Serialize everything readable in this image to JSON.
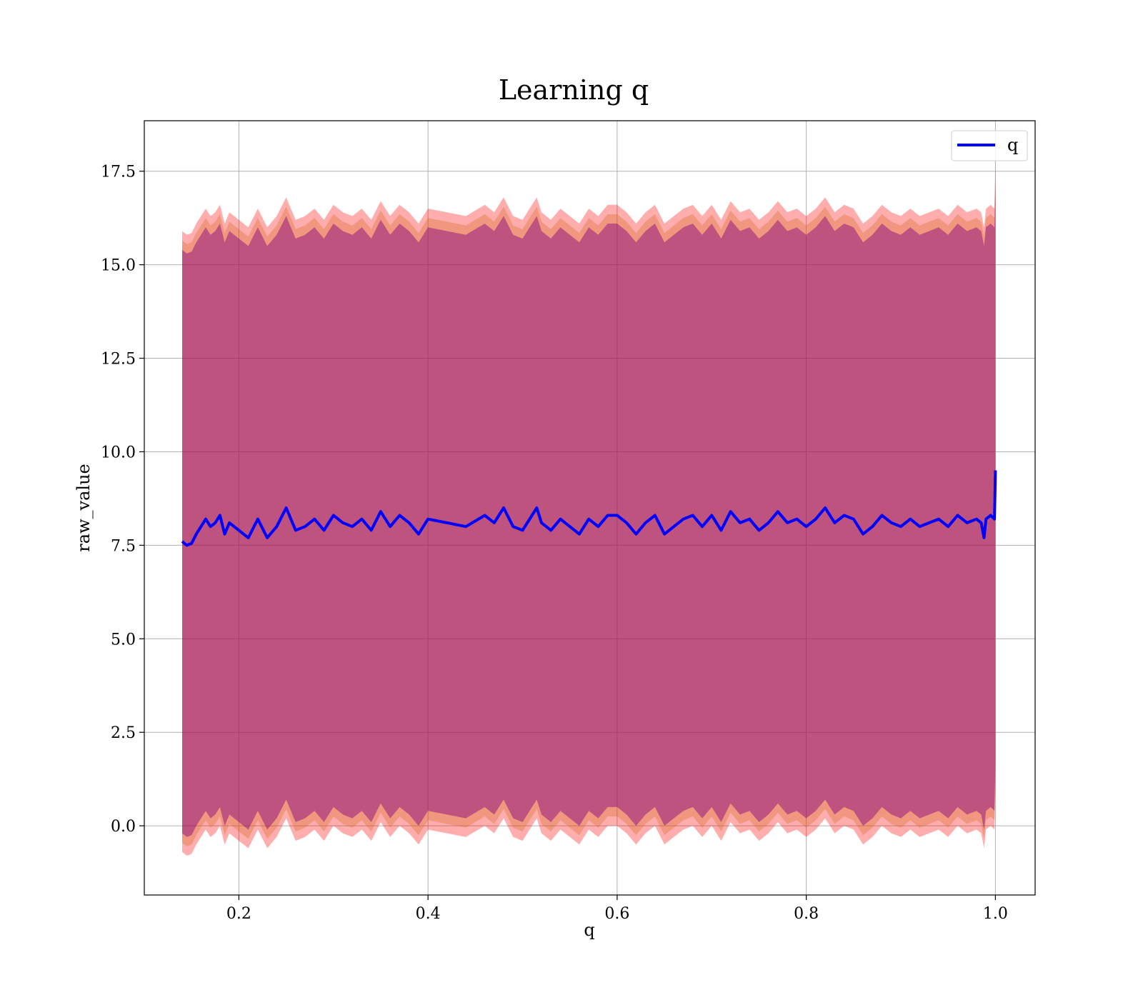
{
  "chart_data": {
    "type": "line",
    "title": "Learning q",
    "xlabel": "q",
    "ylabel": "raw_value",
    "xlim": [
      0.1,
      1.042
    ],
    "ylim": [
      -1.85,
      18.85
    ],
    "x_ticks": [
      0.2,
      0.4,
      0.6,
      0.8,
      1.0
    ],
    "x_tick_labels": [
      "0.2",
      "0.4",
      "0.6",
      "0.8",
      "1.0"
    ],
    "y_ticks": [
      0.0,
      2.5,
      5.0,
      7.5,
      10.0,
      12.5,
      15.0,
      17.5
    ],
    "y_tick_labels": [
      "0.0",
      "2.5",
      "5.0",
      "7.5",
      "10.0",
      "12.5",
      "15.0",
      "17.5"
    ],
    "grid": true,
    "legend": {
      "position": "top-right",
      "entries": [
        "q"
      ]
    },
    "colors": {
      "line": "#0000ff",
      "band_outer": "#ff0000",
      "band_mid": "#d2691e",
      "band_inner": "#800080",
      "grid": "#b0b0b0"
    },
    "series": [
      {
        "name": "q",
        "x": [
          0.14,
          0.145,
          0.15,
          0.155,
          0.16,
          0.165,
          0.17,
          0.175,
          0.18,
          0.185,
          0.19,
          0.2,
          0.21,
          0.22,
          0.23,
          0.24,
          0.25,
          0.26,
          0.27,
          0.28,
          0.29,
          0.3,
          0.31,
          0.32,
          0.33,
          0.34,
          0.35,
          0.36,
          0.37,
          0.38,
          0.39,
          0.4,
          0.42,
          0.44,
          0.46,
          0.47,
          0.48,
          0.49,
          0.5,
          0.51,
          0.515,
          0.52,
          0.53,
          0.54,
          0.55,
          0.56,
          0.57,
          0.58,
          0.59,
          0.6,
          0.61,
          0.62,
          0.63,
          0.64,
          0.65,
          0.66,
          0.67,
          0.68,
          0.69,
          0.7,
          0.71,
          0.72,
          0.73,
          0.74,
          0.75,
          0.76,
          0.77,
          0.78,
          0.79,
          0.8,
          0.81,
          0.82,
          0.83,
          0.84,
          0.85,
          0.86,
          0.87,
          0.88,
          0.89,
          0.9,
          0.91,
          0.92,
          0.93,
          0.94,
          0.95,
          0.96,
          0.97,
          0.98,
          0.985,
          0.988,
          0.99,
          0.995,
          0.999,
          1.0
        ],
        "y": [
          7.6,
          7.5,
          7.55,
          7.8,
          8.0,
          8.2,
          8.0,
          8.1,
          8.3,
          7.8,
          8.1,
          7.9,
          7.7,
          8.2,
          7.7,
          8.0,
          8.5,
          7.9,
          8.0,
          8.2,
          7.9,
          8.3,
          8.1,
          8.0,
          8.2,
          7.9,
          8.4,
          8.0,
          8.3,
          8.1,
          7.8,
          8.2,
          8.1,
          8.0,
          8.3,
          8.1,
          8.5,
          8.0,
          7.9,
          8.3,
          8.5,
          8.1,
          7.9,
          8.2,
          8.0,
          7.8,
          8.2,
          8.0,
          8.3,
          8.3,
          8.1,
          7.8,
          8.1,
          8.3,
          7.8,
          8.0,
          8.2,
          8.3,
          8.0,
          8.3,
          7.9,
          8.4,
          8.1,
          8.2,
          7.9,
          8.1,
          8.4,
          8.1,
          8.2,
          8.0,
          8.2,
          8.5,
          8.1,
          8.3,
          8.2,
          7.8,
          8.0,
          8.3,
          8.1,
          8.0,
          8.2,
          8.0,
          8.1,
          8.2,
          8.0,
          8.3,
          8.1,
          8.2,
          8.1,
          7.7,
          8.2,
          8.3,
          8.2,
          9.5
        ],
        "bands": [
          {
            "role": "outer",
            "upper_offset": 8.3,
            "lower_offset": -8.3
          },
          {
            "role": "mid",
            "upper_offset": 8.05,
            "lower_offset": -8.05
          },
          {
            "role": "inner",
            "upper_offset": 7.8,
            "lower_offset": -7.8
          }
        ]
      }
    ]
  }
}
